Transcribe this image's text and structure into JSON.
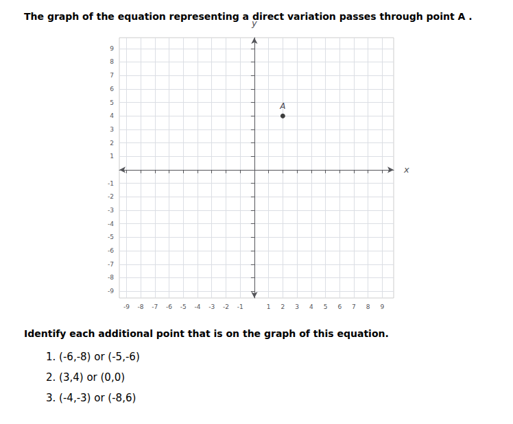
{
  "chart_data": {
    "type": "scatter",
    "title": "The graph of the equation representing a direct variation passes through point A .",
    "subtitle": "Identify each additional point that is on the graph of this equation.",
    "annotations": [
      {
        "text": "A",
        "x": 2,
        "y": 4
      },
      {
        "text": "1. (-6,-8) or (-5,-6)"
      },
      {
        "text": "2. (3,4) or (0,0)"
      },
      {
        "text": "3. (-4,-3) or (-8,6)"
      }
    ],
    "x": [
      2
    ],
    "values": [
      4
    ],
    "color": "#111111",
    "xlabel": "x",
    "ylabel": "y",
    "xlim": [
      -9.5,
      9.8
    ],
    "ylim": [
      -9.5,
      9.8
    ],
    "xticks": [
      -9,
      -8,
      -7,
      -6,
      -5,
      -4,
      -3,
      -2,
      -1,
      1,
      2,
      3,
      4,
      5,
      6,
      7,
      8,
      9
    ],
    "yticks": [
      -9,
      -8,
      -7,
      -6,
      -5,
      -4,
      -3,
      -2,
      -1,
      1,
      2,
      3,
      4,
      5,
      6,
      7,
      8,
      9
    ],
    "grid": true
  }
}
